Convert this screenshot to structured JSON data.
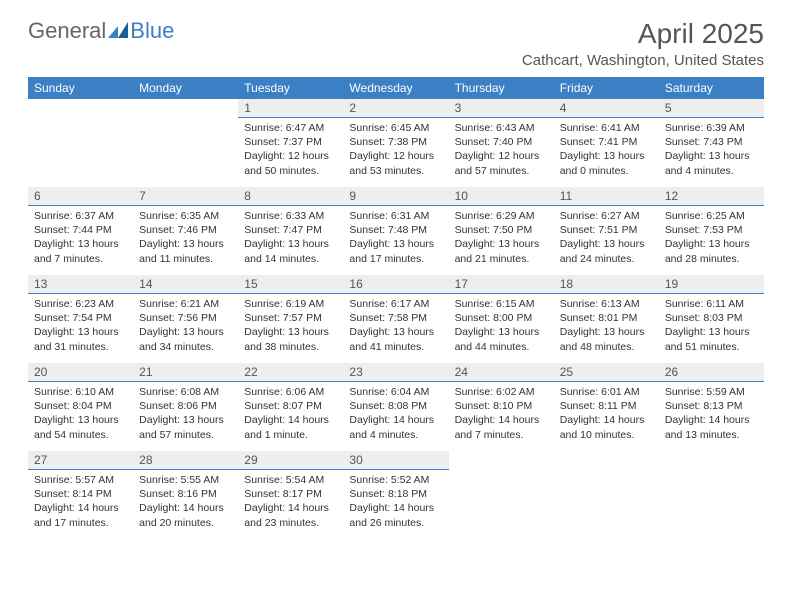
{
  "logo": {
    "text1": "General",
    "text2": "Blue"
  },
  "title": "April 2025",
  "location": "Cathcart, Washington, United States",
  "colors": {
    "header_bg": "#3b7fc4",
    "header_fg": "#ffffff",
    "daynum_bg": "#eeeeee",
    "daynum_border": "#3b7fc4",
    "text": "#333333",
    "muted": "#555555"
  },
  "day_names": [
    "Sunday",
    "Monday",
    "Tuesday",
    "Wednesday",
    "Thursday",
    "Friday",
    "Saturday"
  ],
  "weeks": [
    [
      null,
      null,
      {
        "n": "1",
        "sunrise": "Sunrise: 6:47 AM",
        "sunset": "Sunset: 7:37 PM",
        "daylight": "Daylight: 12 hours and 50 minutes."
      },
      {
        "n": "2",
        "sunrise": "Sunrise: 6:45 AM",
        "sunset": "Sunset: 7:38 PM",
        "daylight": "Daylight: 12 hours and 53 minutes."
      },
      {
        "n": "3",
        "sunrise": "Sunrise: 6:43 AM",
        "sunset": "Sunset: 7:40 PM",
        "daylight": "Daylight: 12 hours and 57 minutes."
      },
      {
        "n": "4",
        "sunrise": "Sunrise: 6:41 AM",
        "sunset": "Sunset: 7:41 PM",
        "daylight": "Daylight: 13 hours and 0 minutes."
      },
      {
        "n": "5",
        "sunrise": "Sunrise: 6:39 AM",
        "sunset": "Sunset: 7:43 PM",
        "daylight": "Daylight: 13 hours and 4 minutes."
      }
    ],
    [
      {
        "n": "6",
        "sunrise": "Sunrise: 6:37 AM",
        "sunset": "Sunset: 7:44 PM",
        "daylight": "Daylight: 13 hours and 7 minutes."
      },
      {
        "n": "7",
        "sunrise": "Sunrise: 6:35 AM",
        "sunset": "Sunset: 7:46 PM",
        "daylight": "Daylight: 13 hours and 11 minutes."
      },
      {
        "n": "8",
        "sunrise": "Sunrise: 6:33 AM",
        "sunset": "Sunset: 7:47 PM",
        "daylight": "Daylight: 13 hours and 14 minutes."
      },
      {
        "n": "9",
        "sunrise": "Sunrise: 6:31 AM",
        "sunset": "Sunset: 7:48 PM",
        "daylight": "Daylight: 13 hours and 17 minutes."
      },
      {
        "n": "10",
        "sunrise": "Sunrise: 6:29 AM",
        "sunset": "Sunset: 7:50 PM",
        "daylight": "Daylight: 13 hours and 21 minutes."
      },
      {
        "n": "11",
        "sunrise": "Sunrise: 6:27 AM",
        "sunset": "Sunset: 7:51 PM",
        "daylight": "Daylight: 13 hours and 24 minutes."
      },
      {
        "n": "12",
        "sunrise": "Sunrise: 6:25 AM",
        "sunset": "Sunset: 7:53 PM",
        "daylight": "Daylight: 13 hours and 28 minutes."
      }
    ],
    [
      {
        "n": "13",
        "sunrise": "Sunrise: 6:23 AM",
        "sunset": "Sunset: 7:54 PM",
        "daylight": "Daylight: 13 hours and 31 minutes."
      },
      {
        "n": "14",
        "sunrise": "Sunrise: 6:21 AM",
        "sunset": "Sunset: 7:56 PM",
        "daylight": "Daylight: 13 hours and 34 minutes."
      },
      {
        "n": "15",
        "sunrise": "Sunrise: 6:19 AM",
        "sunset": "Sunset: 7:57 PM",
        "daylight": "Daylight: 13 hours and 38 minutes."
      },
      {
        "n": "16",
        "sunrise": "Sunrise: 6:17 AM",
        "sunset": "Sunset: 7:58 PM",
        "daylight": "Daylight: 13 hours and 41 minutes."
      },
      {
        "n": "17",
        "sunrise": "Sunrise: 6:15 AM",
        "sunset": "Sunset: 8:00 PM",
        "daylight": "Daylight: 13 hours and 44 minutes."
      },
      {
        "n": "18",
        "sunrise": "Sunrise: 6:13 AM",
        "sunset": "Sunset: 8:01 PM",
        "daylight": "Daylight: 13 hours and 48 minutes."
      },
      {
        "n": "19",
        "sunrise": "Sunrise: 6:11 AM",
        "sunset": "Sunset: 8:03 PM",
        "daylight": "Daylight: 13 hours and 51 minutes."
      }
    ],
    [
      {
        "n": "20",
        "sunrise": "Sunrise: 6:10 AM",
        "sunset": "Sunset: 8:04 PM",
        "daylight": "Daylight: 13 hours and 54 minutes."
      },
      {
        "n": "21",
        "sunrise": "Sunrise: 6:08 AM",
        "sunset": "Sunset: 8:06 PM",
        "daylight": "Daylight: 13 hours and 57 minutes."
      },
      {
        "n": "22",
        "sunrise": "Sunrise: 6:06 AM",
        "sunset": "Sunset: 8:07 PM",
        "daylight": "Daylight: 14 hours and 1 minute."
      },
      {
        "n": "23",
        "sunrise": "Sunrise: 6:04 AM",
        "sunset": "Sunset: 8:08 PM",
        "daylight": "Daylight: 14 hours and 4 minutes."
      },
      {
        "n": "24",
        "sunrise": "Sunrise: 6:02 AM",
        "sunset": "Sunset: 8:10 PM",
        "daylight": "Daylight: 14 hours and 7 minutes."
      },
      {
        "n": "25",
        "sunrise": "Sunrise: 6:01 AM",
        "sunset": "Sunset: 8:11 PM",
        "daylight": "Daylight: 14 hours and 10 minutes."
      },
      {
        "n": "26",
        "sunrise": "Sunrise: 5:59 AM",
        "sunset": "Sunset: 8:13 PM",
        "daylight": "Daylight: 14 hours and 13 minutes."
      }
    ],
    [
      {
        "n": "27",
        "sunrise": "Sunrise: 5:57 AM",
        "sunset": "Sunset: 8:14 PM",
        "daylight": "Daylight: 14 hours and 17 minutes."
      },
      {
        "n": "28",
        "sunrise": "Sunrise: 5:55 AM",
        "sunset": "Sunset: 8:16 PM",
        "daylight": "Daylight: 14 hours and 20 minutes."
      },
      {
        "n": "29",
        "sunrise": "Sunrise: 5:54 AM",
        "sunset": "Sunset: 8:17 PM",
        "daylight": "Daylight: 14 hours and 23 minutes."
      },
      {
        "n": "30",
        "sunrise": "Sunrise: 5:52 AM",
        "sunset": "Sunset: 8:18 PM",
        "daylight": "Daylight: 14 hours and 26 minutes."
      },
      null,
      null,
      null
    ]
  ]
}
